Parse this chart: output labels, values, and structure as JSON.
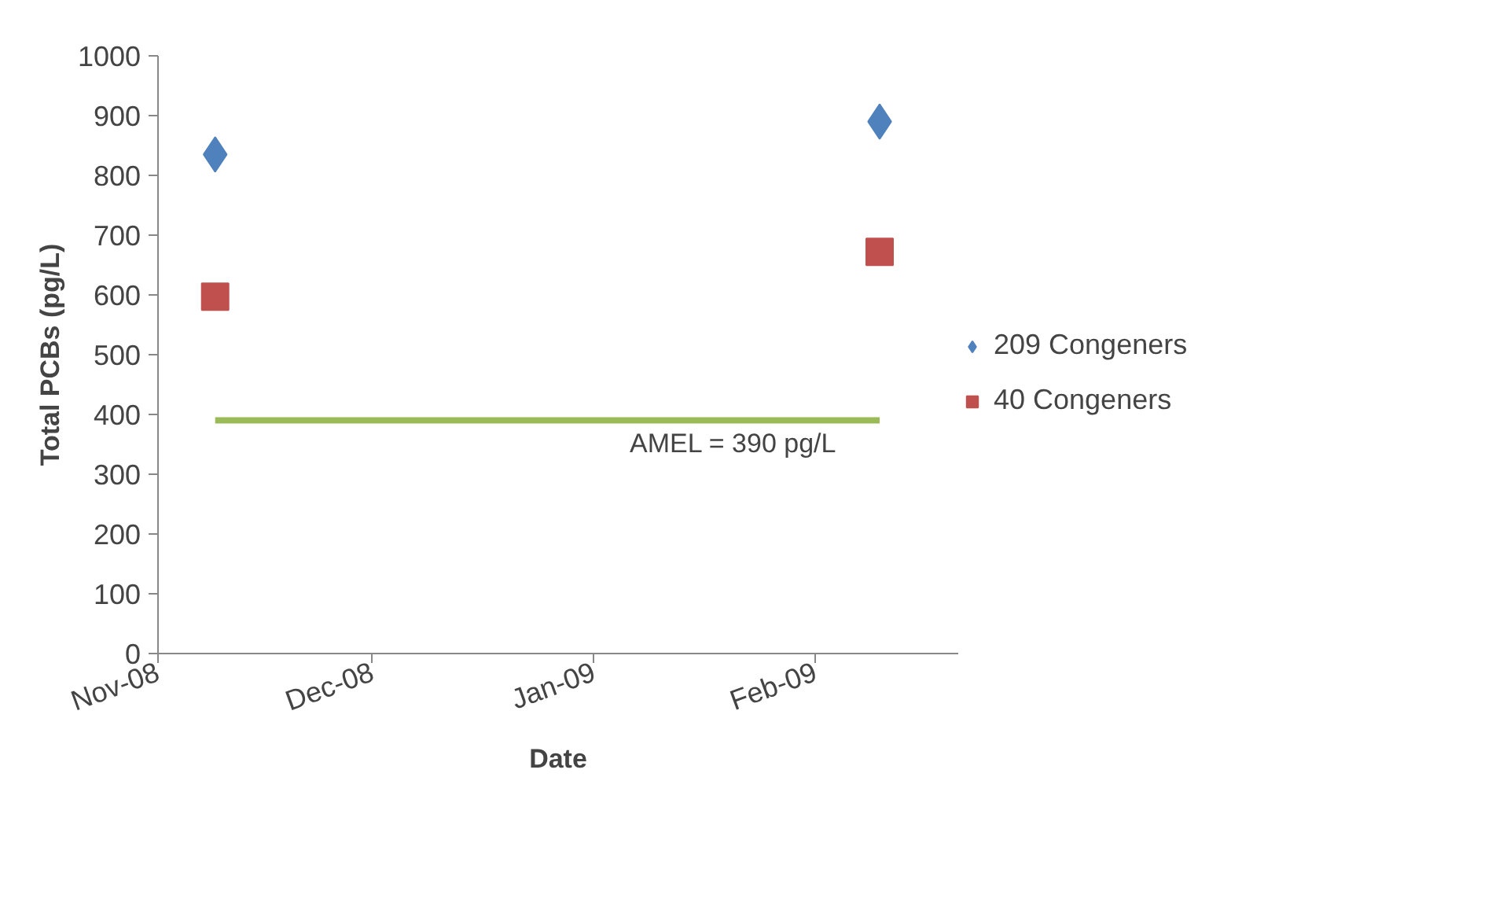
{
  "chart_data": {
    "type": "scatter",
    "xlabel": "Date",
    "ylabel": "Total PCBs (pg/L)",
    "xlim": [
      "2008-11-01",
      "2009-02-21"
    ],
    "xticks": [
      {
        "value": "2008-11-01",
        "label": "Nov-08"
      },
      {
        "value": "2008-12-01",
        "label": "Dec-08"
      },
      {
        "value": "2009-01-01",
        "label": "Jan-09"
      },
      {
        "value": "2009-02-01",
        "label": "Feb-09"
      }
    ],
    "ylim": [
      0,
      1000
    ],
    "yticks": [
      0,
      100,
      200,
      300,
      400,
      500,
      600,
      700,
      800,
      900,
      1000
    ],
    "grid": false,
    "legend": "right",
    "series": [
      {
        "name": "209 Congeners",
        "color": "#4f81bd",
        "marker": "diamond",
        "x": [
          "2008-11-09",
          "2009-02-10"
        ],
        "values": [
          835,
          890
        ]
      },
      {
        "name": "40 Congeners",
        "color": "#c0504d",
        "marker": "square",
        "x": [
          "2008-11-09",
          "2009-02-10"
        ],
        "values": [
          597,
          672
        ]
      },
      {
        "type": "line",
        "color": "#9bbb59",
        "marker": "none",
        "x": [
          "2008-11-09",
          "2009-02-10"
        ],
        "values": [
          390,
          390
        ]
      }
    ],
    "annotations": [
      "AMEL = 390 pg/L"
    ]
  }
}
